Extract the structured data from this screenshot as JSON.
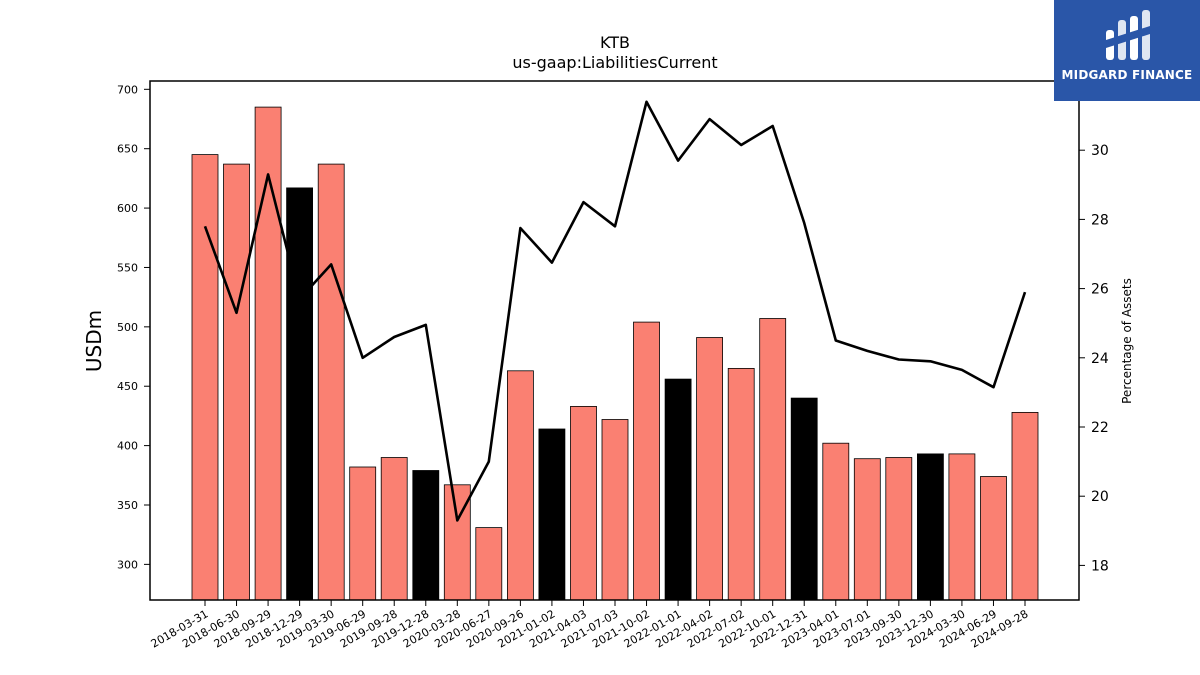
{
  "brand": {
    "name": "MIDGARD FINANCE",
    "color": "#2a56a8"
  },
  "chart_data": {
    "type": "bar",
    "title": "KTB",
    "subtitle": "us-gaap:LiabilitiesCurrent",
    "ylabel": "USDm",
    "y2label": "Percentage of Assets",
    "ylim": [
      270,
      707
    ],
    "y2lim": [
      17.0,
      32.0
    ],
    "yticks": [
      300,
      350,
      400,
      450,
      500,
      550,
      600,
      650,
      700
    ],
    "y2ticks": [
      18,
      20,
      22,
      24,
      26,
      28,
      30
    ],
    "colors": {
      "bar": "#fa8072",
      "bar_highlight": "#000000",
      "line": "#000000"
    },
    "categories": [
      "2018-03-31",
      "2018-06-30",
      "2018-09-29",
      "2018-12-29",
      "2019-03-30",
      "2019-06-29",
      "2019-09-28",
      "2019-12-28",
      "2020-03-28",
      "2020-06-27",
      "2020-09-26",
      "2021-01-02",
      "2021-04-03",
      "2021-07-03",
      "2021-10-02",
      "2022-01-01",
      "2022-04-02",
      "2022-07-02",
      "2022-10-01",
      "2022-12-31",
      "2023-04-01",
      "2023-07-01",
      "2023-09-30",
      "2023-12-30",
      "2024-03-30",
      "2024-06-29",
      "2024-09-28"
    ],
    "highlight": [
      false,
      false,
      false,
      true,
      false,
      false,
      false,
      true,
      false,
      false,
      false,
      true,
      false,
      false,
      false,
      true,
      false,
      false,
      false,
      true,
      false,
      false,
      false,
      true,
      false,
      false,
      false
    ],
    "series": [
      {
        "values": [
          645,
          637,
          685,
          617,
          637,
          382,
          390,
          379,
          367,
          331,
          463,
          414,
          433,
          422,
          504,
          456,
          491,
          465,
          507,
          440,
          402,
          389,
          390,
          393,
          393,
          374,
          428
        ]
      },
      {
        "axis": "right",
        "type": "line",
        "values": [
          27.8,
          25.3,
          29.3,
          25.7,
          26.7,
          24.0,
          24.6,
          24.95,
          19.3,
          21.0,
          27.75,
          26.75,
          28.5,
          27.8,
          31.4,
          29.7,
          30.9,
          30.15,
          30.7,
          27.9,
          24.5,
          24.2,
          23.95,
          23.9,
          23.65,
          23.15,
          25.9
        ]
      }
    ]
  }
}
